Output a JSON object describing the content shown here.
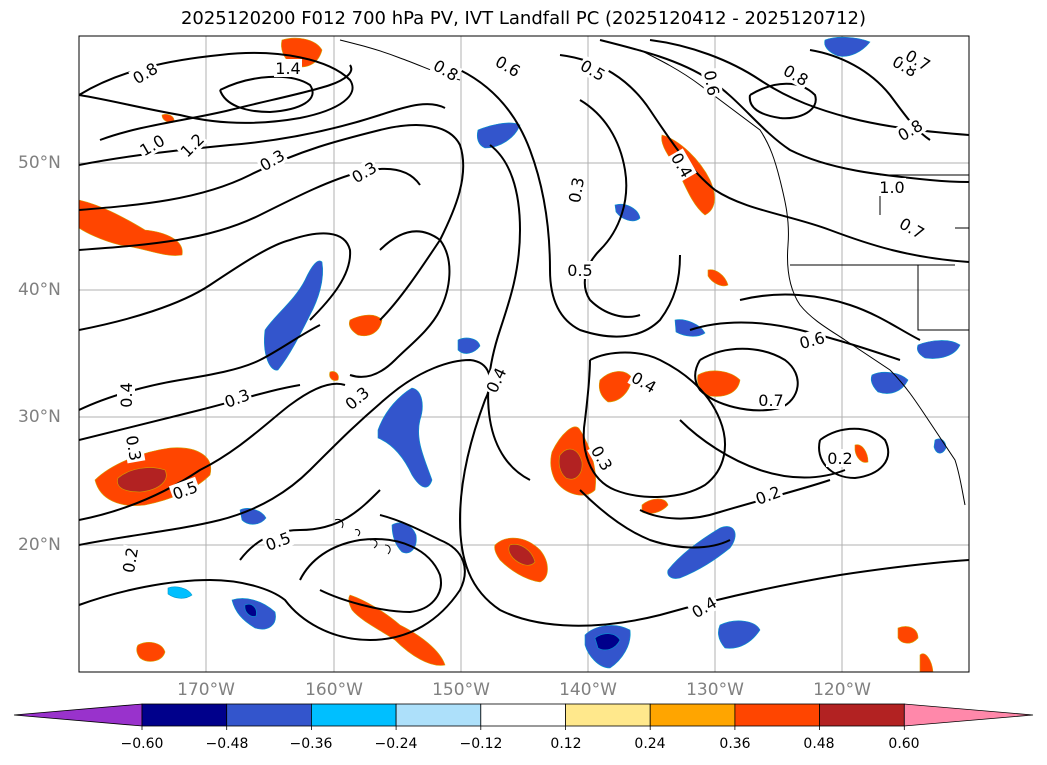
{
  "title": "2025120200 F012 700 hPa PV, IVT Landfall PC (2025120412 - 2025120712)",
  "map": {
    "lon_labels": [
      "170°W",
      "160°W",
      "150°W",
      "140°W",
      "130°W",
      "120°W"
    ],
    "lat_labels": [
      "50°N",
      "40°N",
      "30°N",
      "20°N"
    ],
    "contour_labels": [
      "0.8",
      "1.4",
      "1.0",
      "1.2",
      "0.8",
      "0.6",
      "0.5",
      "0.6",
      "0.8",
      "0.8",
      "0.8",
      "0.7",
      "1.0",
      "0.7",
      "0.3",
      "0.3",
      "0.5",
      "0.4",
      "0.3",
      "0.6",
      "0.4",
      "0.7",
      "0.4",
      "0.3",
      "0.3",
      "0.4",
      "0.3",
      "0.5",
      "0.3",
      "0.2",
      "0.2",
      "0.4",
      "0.5",
      "0.2"
    ]
  },
  "colorbar": {
    "colors": [
      "#9932CC",
      "#00008B",
      "#3355CC",
      "#00BFFF",
      "#ADE0FA",
      "#FFFFFF",
      "#FFE88C",
      "#FFA500",
      "#FF4500",
      "#B22222",
      "#FF88AA"
    ],
    "tick_labels": [
      "−0.60",
      "−0.48",
      "−0.36",
      "−0.24",
      "−0.12",
      "0.12",
      "0.24",
      "0.36",
      "0.48",
      "0.60"
    ]
  }
}
